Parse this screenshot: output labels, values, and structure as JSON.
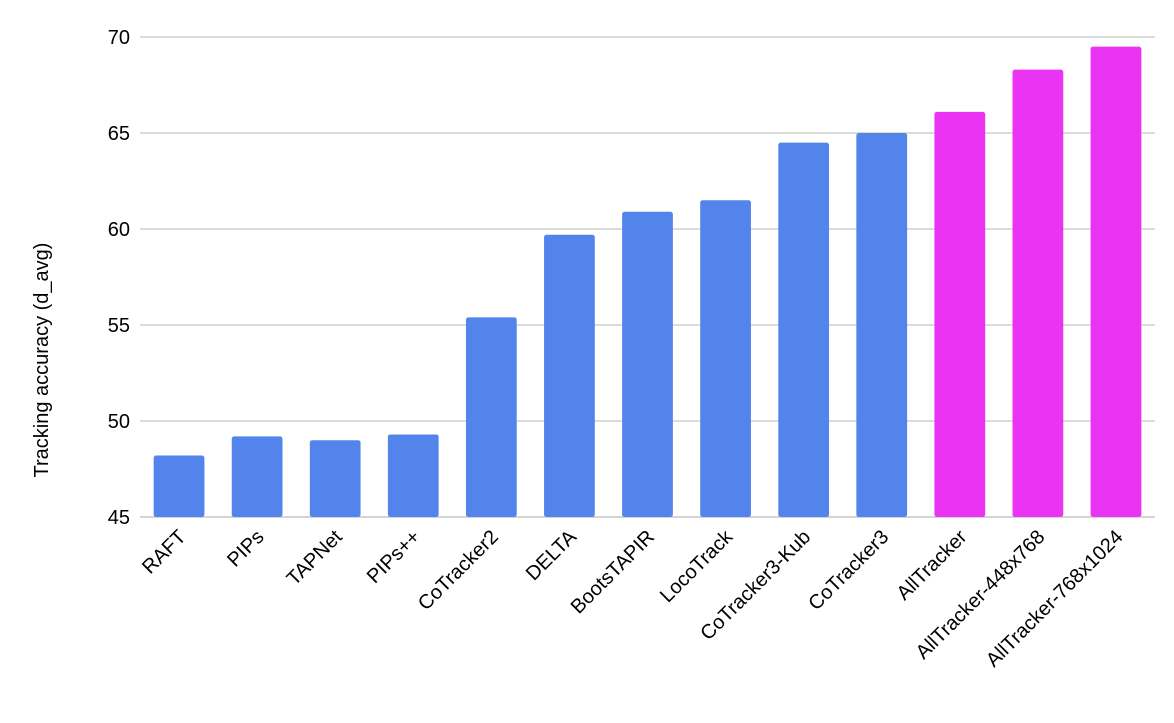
{
  "chart_data": {
    "type": "bar",
    "title": "",
    "xlabel": "",
    "ylabel": "Tracking accuracy (d_avg)",
    "ylim": [
      45,
      70
    ],
    "yticks": [
      45,
      50,
      55,
      60,
      65,
      70
    ],
    "grid": true,
    "legend": "none",
    "categories": [
      "RAFT",
      "PIPs",
      "TAPNet",
      "PIPs++",
      "CoTracker2",
      "DELTA",
      "BootsTAPIR",
      "LocoTrack",
      "CoTracker3-Kub",
      "CoTracker3",
      "AllTracker",
      "AllTracker-448x768",
      "AllTracker-768x1024"
    ],
    "values": [
      48.2,
      49.2,
      49.0,
      49.3,
      55.4,
      59.7,
      60.9,
      61.5,
      64.5,
      65.0,
      66.1,
      68.3,
      69.5
    ],
    "bar_colors": [
      "#5284eb",
      "#5284eb",
      "#5284eb",
      "#5284eb",
      "#5284eb",
      "#5284eb",
      "#5284eb",
      "#5284eb",
      "#5284eb",
      "#5284eb",
      "#ea33f3",
      "#ea33f3",
      "#ea33f3"
    ],
    "gridline_color": "#c6c6c6"
  }
}
